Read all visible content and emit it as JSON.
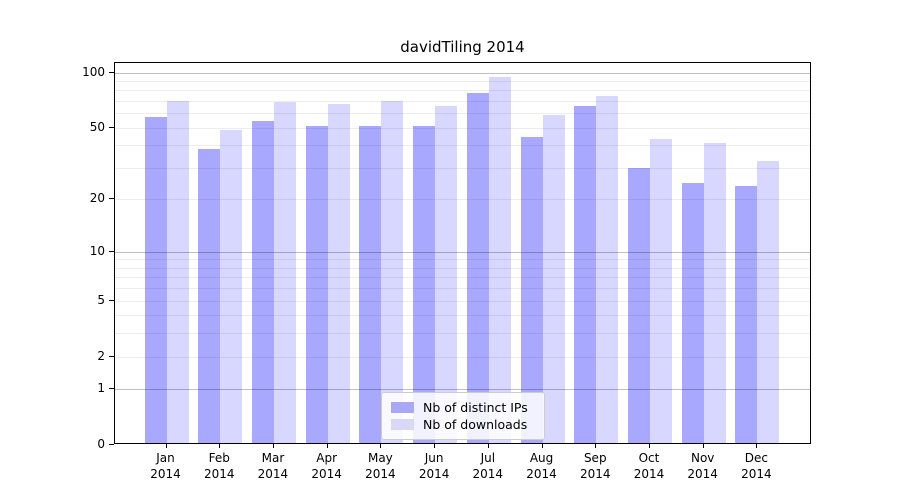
{
  "title": "davidTiling 2014",
  "chart_data": {
    "type": "bar",
    "title": "davidTiling 2014",
    "categories": [
      "Jan 2014",
      "Feb 2014",
      "Mar 2014",
      "Apr 2014",
      "May 2014",
      "Jun 2014",
      "Jul 2014",
      "Aug 2014",
      "Sep 2014",
      "Oct 2014",
      "Nov 2014",
      "Dec 2014"
    ],
    "x_tick_line1": [
      "Jan",
      "Feb",
      "Mar",
      "Apr",
      "May",
      "Jun",
      "Jul",
      "Aug",
      "Sep",
      "Oct",
      "Nov",
      "Dec"
    ],
    "x_tick_line2": [
      "2014",
      "2014",
      "2014",
      "2014",
      "2014",
      "2014",
      "2014",
      "2014",
      "2014",
      "2014",
      "2014",
      "2014"
    ],
    "series": [
      {
        "name": "Nb of distinct IPs",
        "color": "#0000ff",
        "opacity": 0.34,
        "effective_hex": "#a8a8f5",
        "values": [
          56,
          37,
          53,
          50,
          50,
          50,
          75,
          43,
          64,
          29,
          24,
          23
        ]
      },
      {
        "name": "Nb of downloads",
        "color": "#0000ff",
        "opacity": 0.155,
        "effective_hex": "#d8d8f8",
        "values": [
          68,
          47,
          67,
          66,
          68,
          64,
          92,
          57,
          73,
          42,
          40,
          32
        ]
      }
    ],
    "xlabel": "",
    "ylabel": "",
    "y_axis_scale": "symlog",
    "y_tick_labels": [
      100,
      50,
      20,
      10,
      5,
      2,
      1,
      0
    ],
    "y_minor_gridlines": [
      2,
      3,
      4,
      5,
      6,
      7,
      8,
      9,
      20,
      30,
      40,
      50,
      60,
      70,
      80,
      90
    ],
    "y_major_gridlines": [
      1,
      10,
      100
    ],
    "ylim": [
      0,
      110
    ],
    "grid": "on",
    "legend_position": "lower center"
  },
  "legend": {
    "items": [
      {
        "label": "Nb of distinct IPs"
      },
      {
        "label": "Nb of downloads"
      }
    ]
  }
}
